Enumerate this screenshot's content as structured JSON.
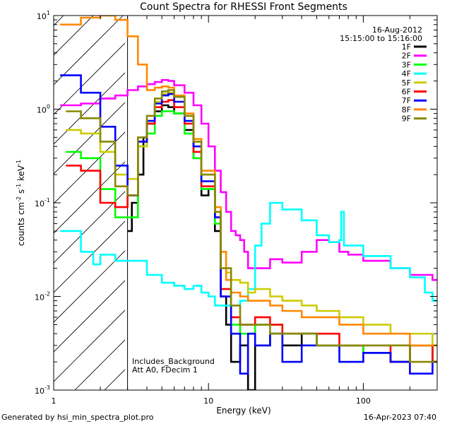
{
  "chart_data": {
    "type": "line",
    "title": "Count Spectra for RHESSI Front Segments",
    "xlabel": "Energy (keV)",
    "ylabel_parts": {
      "a": "counts cm",
      "b": "-2",
      "c": " s",
      "d": "-1",
      "e": " keV",
      "f": "-1"
    },
    "x_scale": "log",
    "y_scale": "log",
    "xlim": [
      1,
      300
    ],
    "ylim": [
      0.001,
      10
    ],
    "x_ticks": [
      {
        "v": 1,
        "label": "1"
      },
      {
        "v": 10,
        "label": "10"
      },
      {
        "v": 100,
        "label": "100"
      }
    ],
    "y_ticks": [
      {
        "v": 0.001,
        "base": "10",
        "exp": "-3"
      },
      {
        "v": 0.01,
        "base": "10",
        "exp": "-2"
      },
      {
        "v": 0.1,
        "base": "10",
        "exp": "-1"
      },
      {
        "v": 1,
        "base": "10",
        "exp": "0"
      },
      {
        "v": 10,
        "base": "10",
        "exp": "1"
      }
    ],
    "date": "16-Aug-2012",
    "time_range": "15:15:00 to 15:16:00",
    "annotations": [
      "Includes_Background",
      "Att A0, FDecim 1"
    ],
    "excluded_region_max_kev": 3,
    "series": [
      {
        "name": "1F",
        "color": "#000000",
        "x": [
          3.0,
          3.2,
          3.5,
          3.8,
          4.0,
          4.5,
          5.0,
          5.5,
          6.0,
          7.0,
          8.0,
          9.0,
          10.0,
          11.0,
          12.0,
          13.0,
          14.0,
          16.0,
          18.0,
          20.0,
          25.0,
          30.0,
          40.0,
          50.0,
          70.0,
          100.0,
          150.0,
          200.0,
          280.0
        ],
        "y": [
          0.05,
          0.1,
          0.2,
          0.5,
          0.7,
          0.95,
          1.1,
          1.05,
          0.9,
          0.6,
          0.3,
          0.12,
          0.14,
          0.05,
          0.01,
          0.005,
          0.002,
          0.003,
          0.001,
          0.003,
          0.004,
          0.003,
          0.004,
          0.003,
          0.003,
          0.0025,
          0.002,
          0.003,
          0.002
        ]
      },
      {
        "name": "2F",
        "color": "#ff00ff",
        "x": [
          1.1,
          1.5,
          2.0,
          2.5,
          3.0,
          3.5,
          4.0,
          4.5,
          5.0,
          5.5,
          6.0,
          7.0,
          8.0,
          9.0,
          10.0,
          11.0,
          12.0,
          13.0,
          14.0,
          15.0,
          16.0,
          17.0,
          18.0,
          20.0,
          25.0,
          30.0,
          40.0,
          50.0,
          60.0,
          70.0,
          80.0,
          100.0,
          150.0,
          200.0,
          280.0
        ],
        "y": [
          1.1,
          1.15,
          1.3,
          1.4,
          1.6,
          1.75,
          1.85,
          1.95,
          2.05,
          2.0,
          1.8,
          1.5,
          1.1,
          0.7,
          0.4,
          0.22,
          0.13,
          0.08,
          0.05,
          0.045,
          0.04,
          0.03,
          0.02,
          0.02,
          0.025,
          0.023,
          0.03,
          0.04,
          0.038,
          0.03,
          0.028,
          0.024,
          0.02,
          0.017,
          0.015
        ]
      },
      {
        "name": "3F",
        "color": "#00ff00",
        "x": [
          1.2,
          1.5,
          2.0,
          2.5,
          3.0,
          3.5,
          4.0,
          4.5,
          5.0,
          5.5,
          6.0,
          7.0,
          8.0,
          9.0,
          10.0,
          11.0,
          12.0,
          14.0,
          16.0,
          20.0,
          25.0,
          30.0,
          40.0,
          50.0,
          70.0,
          100.0,
          150.0,
          200.0,
          280.0
        ],
        "y": [
          0.35,
          0.3,
          0.14,
          0.07,
          0.07,
          0.4,
          0.55,
          0.85,
          0.95,
          0.95,
          0.9,
          0.55,
          0.3,
          0.14,
          0.14,
          0.06,
          0.012,
          0.005,
          0.004,
          0.005,
          0.005,
          0.004,
          0.004,
          0.003,
          0.003,
          0.0025,
          0.002,
          0.003,
          0.002
        ]
      },
      {
        "name": "4F",
        "color": "#00ffff",
        "x": [
          1.1,
          1.5,
          1.8,
          2.0,
          2.5,
          3.0,
          4.0,
          5.0,
          6.0,
          7.0,
          8.0,
          9.0,
          10.0,
          11.0,
          12.0,
          14.0,
          16.0,
          18.0,
          20.0,
          22.0,
          25.0,
          30.0,
          40.0,
          50.0,
          60.0,
          70.0,
          72.0,
          75.0,
          100.0,
          150.0,
          200.0,
          250.0,
          280.0
        ],
        "y": [
          0.05,
          0.03,
          0.022,
          0.028,
          0.024,
          0.024,
          0.017,
          0.014,
          0.013,
          0.012,
          0.013,
          0.011,
          0.01,
          0.008,
          0.008,
          0.008,
          0.009,
          0.012,
          0.035,
          0.06,
          0.1,
          0.085,
          0.065,
          0.045,
          0.038,
          0.04,
          0.08,
          0.035,
          0.027,
          0.02,
          0.016,
          0.011,
          0.009
        ]
      },
      {
        "name": "5F",
        "color": "#cccc00",
        "x": [
          1.2,
          1.5,
          2.0,
          2.5,
          3.0,
          3.5,
          4.0,
          4.5,
          5.0,
          5.5,
          6.0,
          7.0,
          8.0,
          9.0,
          10.0,
          11.0,
          12.0,
          13.0,
          14.0,
          16.0,
          18.0,
          20.0,
          25.0,
          30.0,
          40.0,
          50.0,
          70.0,
          100.0,
          150.0,
          200.0,
          280.0
        ],
        "y": [
          0.6,
          0.55,
          0.35,
          0.2,
          0.18,
          0.4,
          0.75,
          1.2,
          1.45,
          1.5,
          1.35,
          0.85,
          0.45,
          0.2,
          0.2,
          0.08,
          0.03,
          0.018,
          0.015,
          0.014,
          0.011,
          0.012,
          0.01,
          0.009,
          0.008,
          0.007,
          0.006,
          0.005,
          0.004,
          0.004,
          0.003
        ]
      },
      {
        "name": "6F",
        "color": "#ff0000",
        "x": [
          1.2,
          1.5,
          2.0,
          2.5,
          3.0,
          3.5,
          4.0,
          4.5,
          5.0,
          5.5,
          6.0,
          7.0,
          8.0,
          9.0,
          10.0,
          11.0,
          12.0,
          14.0,
          16.0,
          20.0,
          25.0,
          30.0,
          40.0,
          50.0,
          70.0,
          100.0,
          150.0,
          200.0,
          280.0
        ],
        "y": [
          0.25,
          0.22,
          0.1,
          0.09,
          0.12,
          0.45,
          0.7,
          1.05,
          1.2,
          1.25,
          1.05,
          0.7,
          0.35,
          0.15,
          0.15,
          0.07,
          0.012,
          0.006,
          0.005,
          0.006,
          0.005,
          0.004,
          0.004,
          0.004,
          0.003,
          0.003,
          0.002,
          0.003,
          0.002
        ]
      },
      {
        "name": "7F",
        "color": "#0000ff",
        "x": [
          1.1,
          1.5,
          2.0,
          2.5,
          3.0,
          3.5,
          4.0,
          4.5,
          5.0,
          5.5,
          6.0,
          7.0,
          8.0,
          9.0,
          10.0,
          11.0,
          12.0,
          14.0,
          16.0,
          18.0,
          20.0,
          25.0,
          30.0,
          40.0,
          50.0,
          70.0,
          100.0,
          150.0,
          200.0,
          280.0
        ],
        "y": [
          2.3,
          1.5,
          0.65,
          0.25,
          0.12,
          0.45,
          0.75,
          1.15,
          1.4,
          1.45,
          1.2,
          0.75,
          0.4,
          0.17,
          0.17,
          0.07,
          0.01,
          0.004,
          0.0015,
          0.004,
          0.003,
          0.004,
          0.002,
          0.003,
          0.003,
          0.002,
          0.0025,
          0.002,
          0.0015,
          0.002
        ]
      },
      {
        "name": "8F",
        "color": "#ff8800",
        "x": [
          1.1,
          1.5,
          2.0,
          2.5,
          3.0,
          3.5,
          4.0,
          4.5,
          5.0,
          5.5,
          6.0,
          7.0,
          8.0,
          9.0,
          10.0,
          11.0,
          12.0,
          13.0,
          14.0,
          16.0,
          18.0,
          20.0,
          25.0,
          30.0,
          40.0,
          50.0,
          70.0,
          100.0,
          150.0,
          200.0,
          280.0
        ],
        "y": [
          8.0,
          9.5,
          10.0,
          9.0,
          6.0,
          3.0,
          1.6,
          1.7,
          1.75,
          1.7,
          1.4,
          0.9,
          0.48,
          0.22,
          0.22,
          0.09,
          0.03,
          0.015,
          0.011,
          0.01,
          0.009,
          0.009,
          0.008,
          0.007,
          0.006,
          0.006,
          0.005,
          0.004,
          0.004,
          0.003,
          0.003
        ]
      },
      {
        "name": "9F",
        "color": "#888800",
        "x": [
          1.2,
          1.5,
          2.0,
          2.5,
          3.0,
          3.5,
          4.0,
          4.5,
          5.0,
          5.5,
          6.0,
          7.0,
          8.0,
          9.0,
          10.0,
          11.0,
          12.0,
          14.0,
          16.0,
          20.0,
          25.0,
          30.0,
          40.0,
          50.0,
          70.0,
          100.0,
          150.0,
          200.0,
          280.0
        ],
        "y": [
          0.95,
          0.8,
          0.45,
          0.15,
          0.12,
          0.5,
          0.85,
          1.3,
          1.55,
          1.6,
          1.35,
          0.85,
          0.45,
          0.2,
          0.2,
          0.08,
          0.02,
          0.008,
          0.005,
          0.005,
          0.004,
          0.004,
          0.004,
          0.003,
          0.003,
          0.003,
          0.003,
          0.002,
          0.002
        ]
      }
    ]
  },
  "footer": {
    "left": "Generated by hsi_min_spectra_plot.pro",
    "right": "16-Apr-2023 07:40"
  },
  "colors": {
    "axis": "#000000",
    "hatch": "#000000",
    "background": "#ffffff"
  }
}
